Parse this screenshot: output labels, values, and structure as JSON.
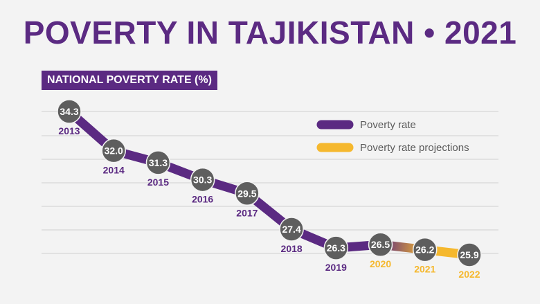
{
  "title": "POVERTY IN TAJIKISTAN • 2021",
  "subtitle": "NATIONAL POVERTY RATE (%)",
  "colors": {
    "actual": "#5b2a82",
    "projection": "#f5b82e",
    "marker": "#5e5e5e",
    "grid": "#cfcfcf",
    "background": "#f3f3f3"
  },
  "chart_data": {
    "type": "line",
    "title": "POVERTY IN TAJIKISTAN • 2021",
    "subtitle": "NATIONAL POVERTY RATE (%)",
    "xlabel": "",
    "ylabel": "",
    "categories": [
      "2013",
      "2014",
      "2015",
      "2016",
      "2017",
      "2018",
      "2019",
      "2020",
      "2021",
      "2022"
    ],
    "series": [
      {
        "name": "Poverty rate",
        "color": "#5b2a82",
        "x": [
          "2013",
          "2014",
          "2015",
          "2016",
          "2017",
          "2018",
          "2019"
        ],
        "values": [
          34.3,
          32.0,
          31.3,
          30.3,
          29.5,
          27.4,
          26.3
        ]
      },
      {
        "name": "Poverty rate projections",
        "color": "#f5b82e",
        "x": [
          "2020",
          "2021",
          "2022"
        ],
        "values": [
          26.5,
          26.2,
          25.9
        ]
      }
    ],
    "grid": true,
    "legend_position": "top-right"
  }
}
